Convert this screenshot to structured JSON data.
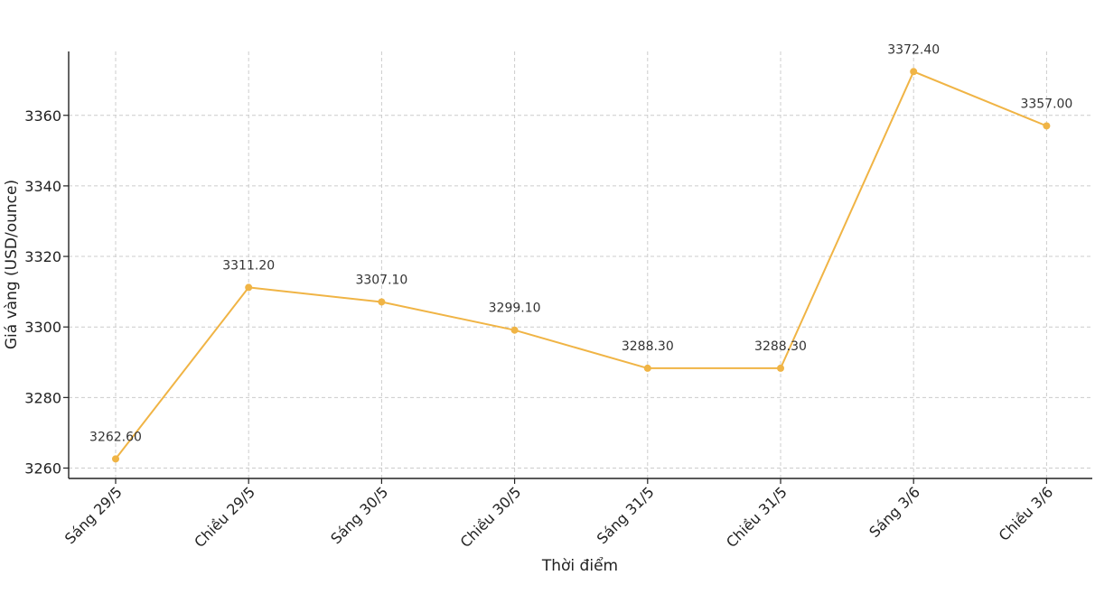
{
  "chart_data": {
    "type": "line",
    "title": "",
    "xlabel": "Thời điểm",
    "ylabel": "Giá vàng (USD/ounce)",
    "categories": [
      "Sáng 29/5",
      "Chiều 29/5",
      "Sáng 30/5",
      "Chiều 30/5",
      "Sáng 31/5",
      "Chiều 31/5",
      "Sáng 3/6",
      "Chiều 3/6"
    ],
    "series": [
      {
        "values": [
          3262.6,
          3311.2,
          3307.1,
          3299.1,
          3288.3,
          3288.3,
          3372.4,
          3357.0
        ],
        "labels": [
          "3262.60",
          "3311.20",
          "3307.10",
          "3299.10",
          "3288.30",
          "3288.30",
          "3372.40",
          "3357.00"
        ],
        "color": "#f0b445"
      }
    ],
    "yticks": [
      3260,
      3280,
      3300,
      3320,
      3340,
      3360
    ],
    "ylim": [
      3257.1,
      3377.9
    ],
    "grid": true,
    "legend": "none"
  }
}
